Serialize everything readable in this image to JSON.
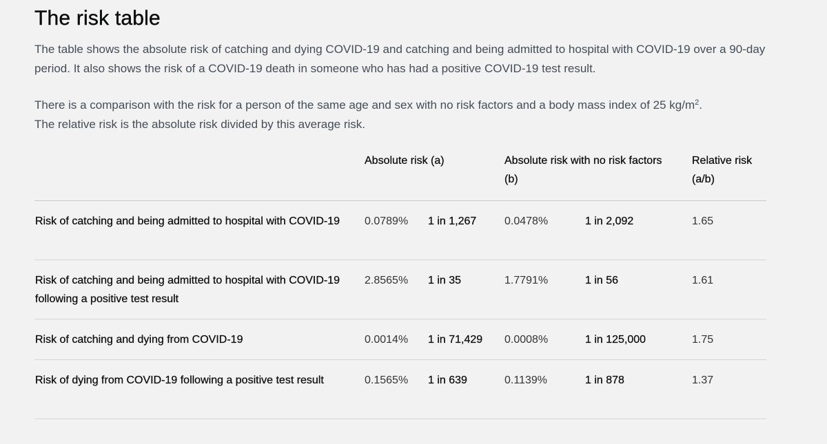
{
  "page": {
    "title": "The risk table",
    "intro": {
      "paragraph1": "The table shows the absolute risk of catching and dying COVID-19 and catching and being admitted to hospital with COVID-19 over a 90-day period. It also shows the risk of a COVID-19 death in someone who has had a positive COVID-19 test result.",
      "paragraph2_before_sup": "There is a comparison with the risk for a person of the same age and sex with no risk factors and a body mass index of 25 kg/m",
      "paragraph2_sup": "2",
      "paragraph2_after_sup": ".",
      "paragraph2_line2": "The relative risk is the absolute risk divided by this average risk."
    }
  },
  "table": {
    "headers": {
      "absolute_risk": "Absolute risk (a)",
      "absolute_risk_no_factors": "Absolute risk with no risk factors (b)",
      "relative_risk": "Relative risk (a/b)"
    },
    "rows": [
      {
        "label": "Risk of catching and being admitted to hospital with COVID-19",
        "abs_pct": "0.0789%",
        "abs_one_in": "1 in 1,267",
        "base_pct": "0.0478%",
        "base_one_in": "1 in 2,092",
        "relative": "1.65"
      },
      {
        "label": "Risk of catching and being admitted to hospital with COVID-19 following a positive test result",
        "abs_pct": "2.8565%",
        "abs_one_in": "1 in 35",
        "base_pct": "1.7791%",
        "base_one_in": "1 in 56",
        "relative": "1.61"
      },
      {
        "label": "Risk of catching and dying from COVID-19",
        "abs_pct": "0.0014%",
        "abs_one_in": "1 in 71,429",
        "base_pct": "0.0008%",
        "base_one_in": "1 in 125,000",
        "relative": "1.75"
      },
      {
        "label": "Risk of dying from COVID-19 following a positive test result",
        "abs_pct": "0.1565%",
        "abs_one_in": "1 in 639",
        "base_pct": "0.1139%",
        "base_one_in": "1 in 878",
        "relative": "1.37"
      }
    ]
  }
}
